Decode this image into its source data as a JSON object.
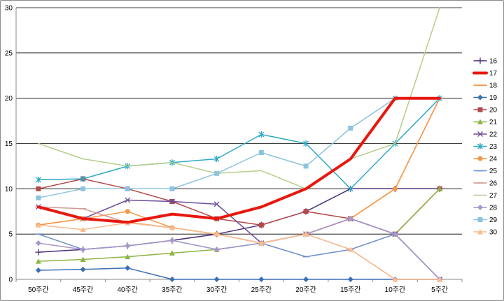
{
  "chart_data": {
    "type": "line",
    "title": "",
    "xlabel": "",
    "ylabel": "",
    "ylim": [
      0,
      30
    ],
    "yticks": [
      "0",
      "5",
      "10",
      "15",
      "20",
      "25",
      "30"
    ],
    "grid": true,
    "legend_position": "right",
    "categories": [
      "50주간",
      "45주간",
      "40주간",
      "35주간",
      "30주간",
      "25주간",
      "20주간",
      "15주간",
      "10주간",
      "5주간"
    ],
    "series": [
      {
        "name": "16",
        "color": "#4B2F7A",
        "marker": "plus",
        "width": 1.5,
        "values": [
          3,
          3.3,
          3.7,
          4.3,
          5,
          6,
          7.5,
          10,
          10,
          10
        ]
      },
      {
        "name": "17",
        "color": "#E8170E",
        "marker": "none",
        "width": 4,
        "values": [
          8,
          6.7,
          6.3,
          7.2,
          6.7,
          8,
          10,
          13.3,
          20,
          20
        ]
      },
      {
        "name": "18",
        "color": "#F07D1E",
        "marker": "none",
        "width": 1.5,
        "values": [
          6,
          6.7,
          6.3,
          5.7,
          5,
          4,
          5,
          6.7,
          10,
          20
        ]
      },
      {
        "name": "19",
        "color": "#3A6FB5",
        "marker": "diamond",
        "width": 1.5,
        "values": [
          1,
          1.1,
          1.25,
          0,
          0,
          0,
          0,
          0,
          0,
          0
        ]
      },
      {
        "name": "20",
        "color": "#B3494A",
        "marker": "square",
        "width": 1.5,
        "values": [
          10,
          11.1,
          10,
          8.6,
          6.7,
          6,
          7.5,
          6.7,
          5,
          10
        ]
      },
      {
        "name": "21",
        "color": "#8DB445",
        "marker": "triangle",
        "width": 1.5,
        "values": [
          2,
          2.2,
          2.5,
          2.9,
          3.3,
          4,
          5,
          6.7,
          5,
          10
        ]
      },
      {
        "name": "22",
        "color": "#6B4E9B",
        "marker": "x",
        "width": 1.5,
        "values": [
          8,
          6.7,
          8.75,
          8.6,
          8.3,
          4,
          5,
          6.7,
          5,
          0
        ]
      },
      {
        "name": "23",
        "color": "#2FA9C4",
        "marker": "star",
        "width": 1.5,
        "values": [
          11,
          11.1,
          12.5,
          12.9,
          13.3,
          16,
          15,
          10,
          15,
          20
        ]
      },
      {
        "name": "24",
        "color": "#F79646",
        "marker": "circle",
        "width": 1.5,
        "values": [
          6,
          6.7,
          7.5,
          5.7,
          5,
          4,
          5,
          6.7,
          10,
          20
        ]
      },
      {
        "name": "25",
        "color": "#6C8EC8",
        "marker": "dash",
        "width": 1.5,
        "values": [
          5,
          3.3,
          3.7,
          4.3,
          3.3,
          4,
          2.5,
          3.3,
          5,
          0
        ]
      },
      {
        "name": "26",
        "color": "#D19A94",
        "marker": "dash",
        "width": 1.5,
        "values": [
          8,
          7.8,
          6.25,
          5.7,
          5,
          4,
          5,
          3.3,
          0,
          0
        ]
      },
      {
        "name": "27",
        "color": "#B5CE8A",
        "marker": "none",
        "width": 1.5,
        "values": [
          15,
          13.3,
          12.5,
          12.9,
          11.7,
          12,
          10,
          13.3,
          15,
          30
        ]
      },
      {
        "name": "28",
        "color": "#A896C9",
        "marker": "diamond",
        "width": 1.5,
        "values": [
          4,
          3.3,
          3.7,
          4.3,
          3.3,
          4,
          5,
          6.7,
          5,
          0
        ]
      },
      {
        "name": "29",
        "color": "#8CC4DF",
        "marker": "square",
        "width": 1.5,
        "values": [
          9,
          10,
          10,
          10,
          11.7,
          14,
          12.5,
          16.7,
          20,
          20
        ]
      },
      {
        "name": "30",
        "color": "#F9BC8F",
        "marker": "triangle",
        "width": 1.5,
        "values": [
          6,
          5.5,
          6.25,
          5.7,
          5,
          4,
          5,
          3.3,
          0,
          0
        ]
      }
    ]
  }
}
